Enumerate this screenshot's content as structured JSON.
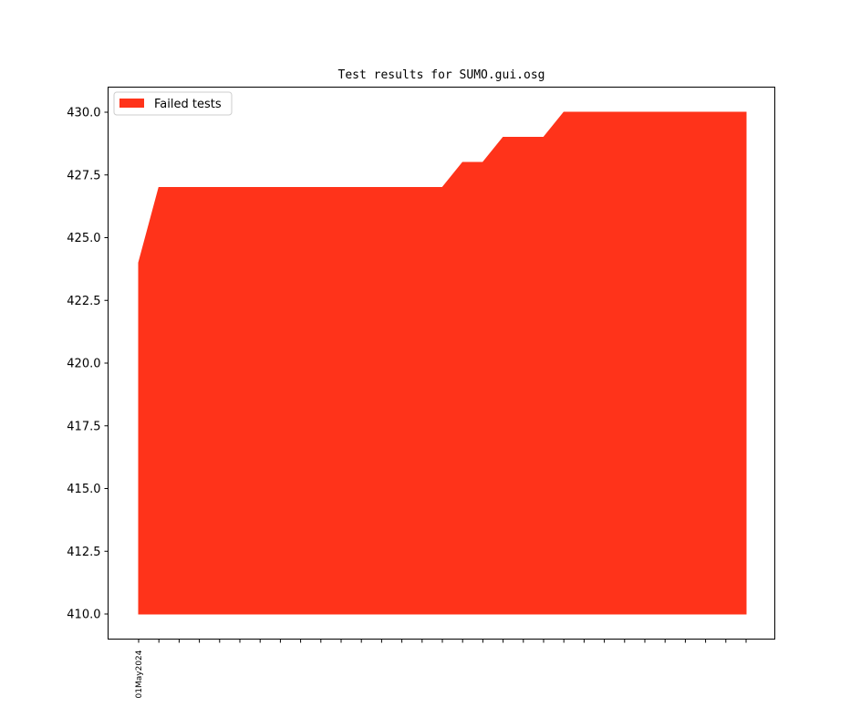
{
  "chart_data": {
    "type": "area",
    "title": "Test results for SUMO.gui.osg",
    "xlabel": "",
    "ylabel": "",
    "x_tick_labels": [
      "01May2024",
      "",
      "",
      "",
      "",
      "",
      "",
      "",
      "",
      "",
      "",
      "",
      "",
      "",
      "",
      "",
      "",
      "",
      "",
      "",
      "",
      "",
      "",
      "",
      "",
      "",
      "",
      "",
      "",
      "",
      ""
    ],
    "ylim": [
      409,
      431
    ],
    "y_ticks": [
      410.0,
      412.5,
      415.0,
      417.5,
      420.0,
      422.5,
      425.0,
      427.5,
      430.0
    ],
    "y_tick_labels": [
      "410.0",
      "412.5",
      "415.0",
      "417.5",
      "420.0",
      "422.5",
      "425.0",
      "427.5",
      "430.0"
    ],
    "baseline": 410,
    "grid": false,
    "legend_position": "top-left",
    "series": [
      {
        "name": "Failed tests",
        "color": "#ff331a",
        "values": [
          424,
          427,
          427,
          427,
          427,
          427,
          427,
          427,
          427,
          427,
          427,
          427,
          427,
          427,
          427,
          427,
          428,
          428,
          429,
          429,
          429,
          430,
          430,
          430,
          430,
          430,
          430,
          430,
          430,
          430,
          430
        ]
      }
    ]
  }
}
